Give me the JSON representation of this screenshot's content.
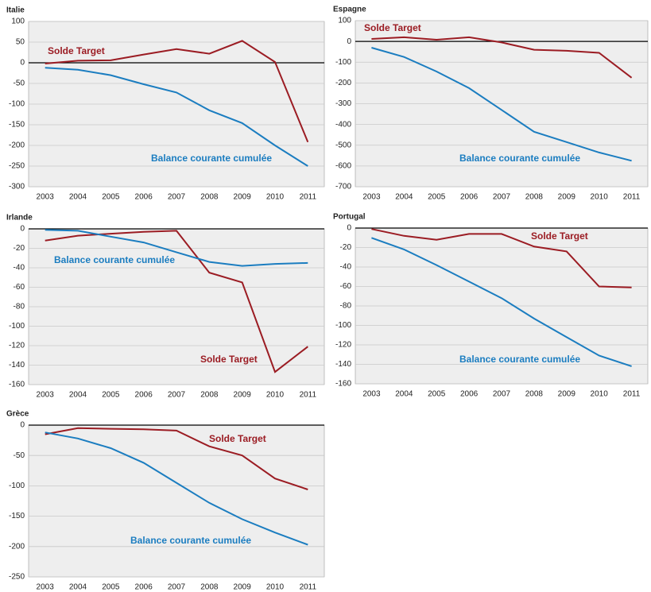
{
  "chart_data": [
    {
      "type": "line",
      "title": "Italie",
      "categories": [
        "2003",
        "2004",
        "2005",
        "2006",
        "2007",
        "2008",
        "2009",
        "2010",
        "2011"
      ],
      "series": [
        {
          "name": "Solde Target",
          "color": "#9b1c23",
          "values": [
            -2,
            5,
            6,
            20,
            33,
            22,
            53,
            2,
            -192
          ]
        },
        {
          "name": "Balance courante cumulée",
          "color": "#1b7dc0",
          "values": [
            -12,
            -17,
            -30,
            -52,
            -72,
            -115,
            -146,
            -200,
            -250
          ]
        }
      ],
      "ylim": [
        -300,
        100
      ],
      "yticks": [
        100,
        50,
        0,
        -50,
        -100,
        -150,
        -200,
        -250,
        -300
      ],
      "grid": true
    },
    {
      "type": "line",
      "title": "Espagne",
      "categories": [
        "2003",
        "2004",
        "2005",
        "2006",
        "2007",
        "2008",
        "2009",
        "2010",
        "2011"
      ],
      "series": [
        {
          "name": "Solde Target",
          "color": "#9b1c23",
          "values": [
            12,
            20,
            8,
            20,
            -5,
            -40,
            -45,
            -55,
            -175
          ]
        },
        {
          "name": "Balance courante cumulée",
          "color": "#1b7dc0",
          "values": [
            -30,
            -75,
            -145,
            -225,
            -330,
            -435,
            -485,
            -535,
            -575
          ]
        }
      ],
      "ylim": [
        -700,
        100
      ],
      "yticks": [
        100,
        0,
        -100,
        -200,
        -300,
        -400,
        -500,
        -600,
        -700
      ],
      "grid": true
    },
    {
      "type": "line",
      "title": "Irlande",
      "categories": [
        "2003",
        "2004",
        "2005",
        "2006",
        "2007",
        "2008",
        "2009",
        "2010",
        "2011"
      ],
      "series": [
        {
          "name": "Solde Target",
          "color": "#9b1c23",
          "values": [
            -12,
            -7,
            -5,
            -3,
            -2,
            -45,
            -55,
            -147,
            -121
          ]
        },
        {
          "name": "Balance courante cumulée",
          "color": "#1b7dc0",
          "values": [
            -1,
            -2,
            -8,
            -14,
            -24,
            -34,
            -38,
            -36,
            -35
          ]
        }
      ],
      "ylim": [
        -160,
        0
      ],
      "yticks": [
        0,
        -20,
        -40,
        -60,
        -80,
        -100,
        -120,
        -140,
        -160
      ],
      "grid": true
    },
    {
      "type": "line",
      "title": "Portugal",
      "categories": [
        "2003",
        "2004",
        "2005",
        "2006",
        "2007",
        "2008",
        "2009",
        "2010",
        "2011"
      ],
      "series": [
        {
          "name": "Solde Target",
          "color": "#9b1c23",
          "values": [
            -1,
            -8,
            -12,
            -6,
            -6,
            -19,
            -24,
            -60,
            -61
          ]
        },
        {
          "name": "Balance courante cumulée",
          "color": "#1b7dc0",
          "values": [
            -10,
            -22,
            -38,
            -55,
            -72,
            -93,
            -112,
            -131,
            -142
          ]
        }
      ],
      "ylim": [
        -160,
        0
      ],
      "yticks": [
        0,
        -20,
        -40,
        -60,
        -80,
        -100,
        -120,
        -140,
        -160
      ],
      "grid": true
    },
    {
      "type": "line",
      "title": "Grèce",
      "categories": [
        "2003",
        "2004",
        "2005",
        "2006",
        "2007",
        "2008",
        "2009",
        "2010",
        "2011"
      ],
      "series": [
        {
          "name": "Solde Target",
          "color": "#9b1c23",
          "values": [
            -15,
            -5,
            -6,
            -7,
            -9,
            -35,
            -50,
            -88,
            -106
          ]
        },
        {
          "name": "Balance courante cumulée",
          "color": "#1b7dc0",
          "values": [
            -12,
            -22,
            -38,
            -62,
            -95,
            -128,
            -155,
            -177,
            -197
          ]
        }
      ],
      "ylim": [
        -250,
        0
      ],
      "yticks": [
        0,
        -50,
        -100,
        -150,
        -200,
        -250
      ],
      "grid": true
    }
  ]
}
